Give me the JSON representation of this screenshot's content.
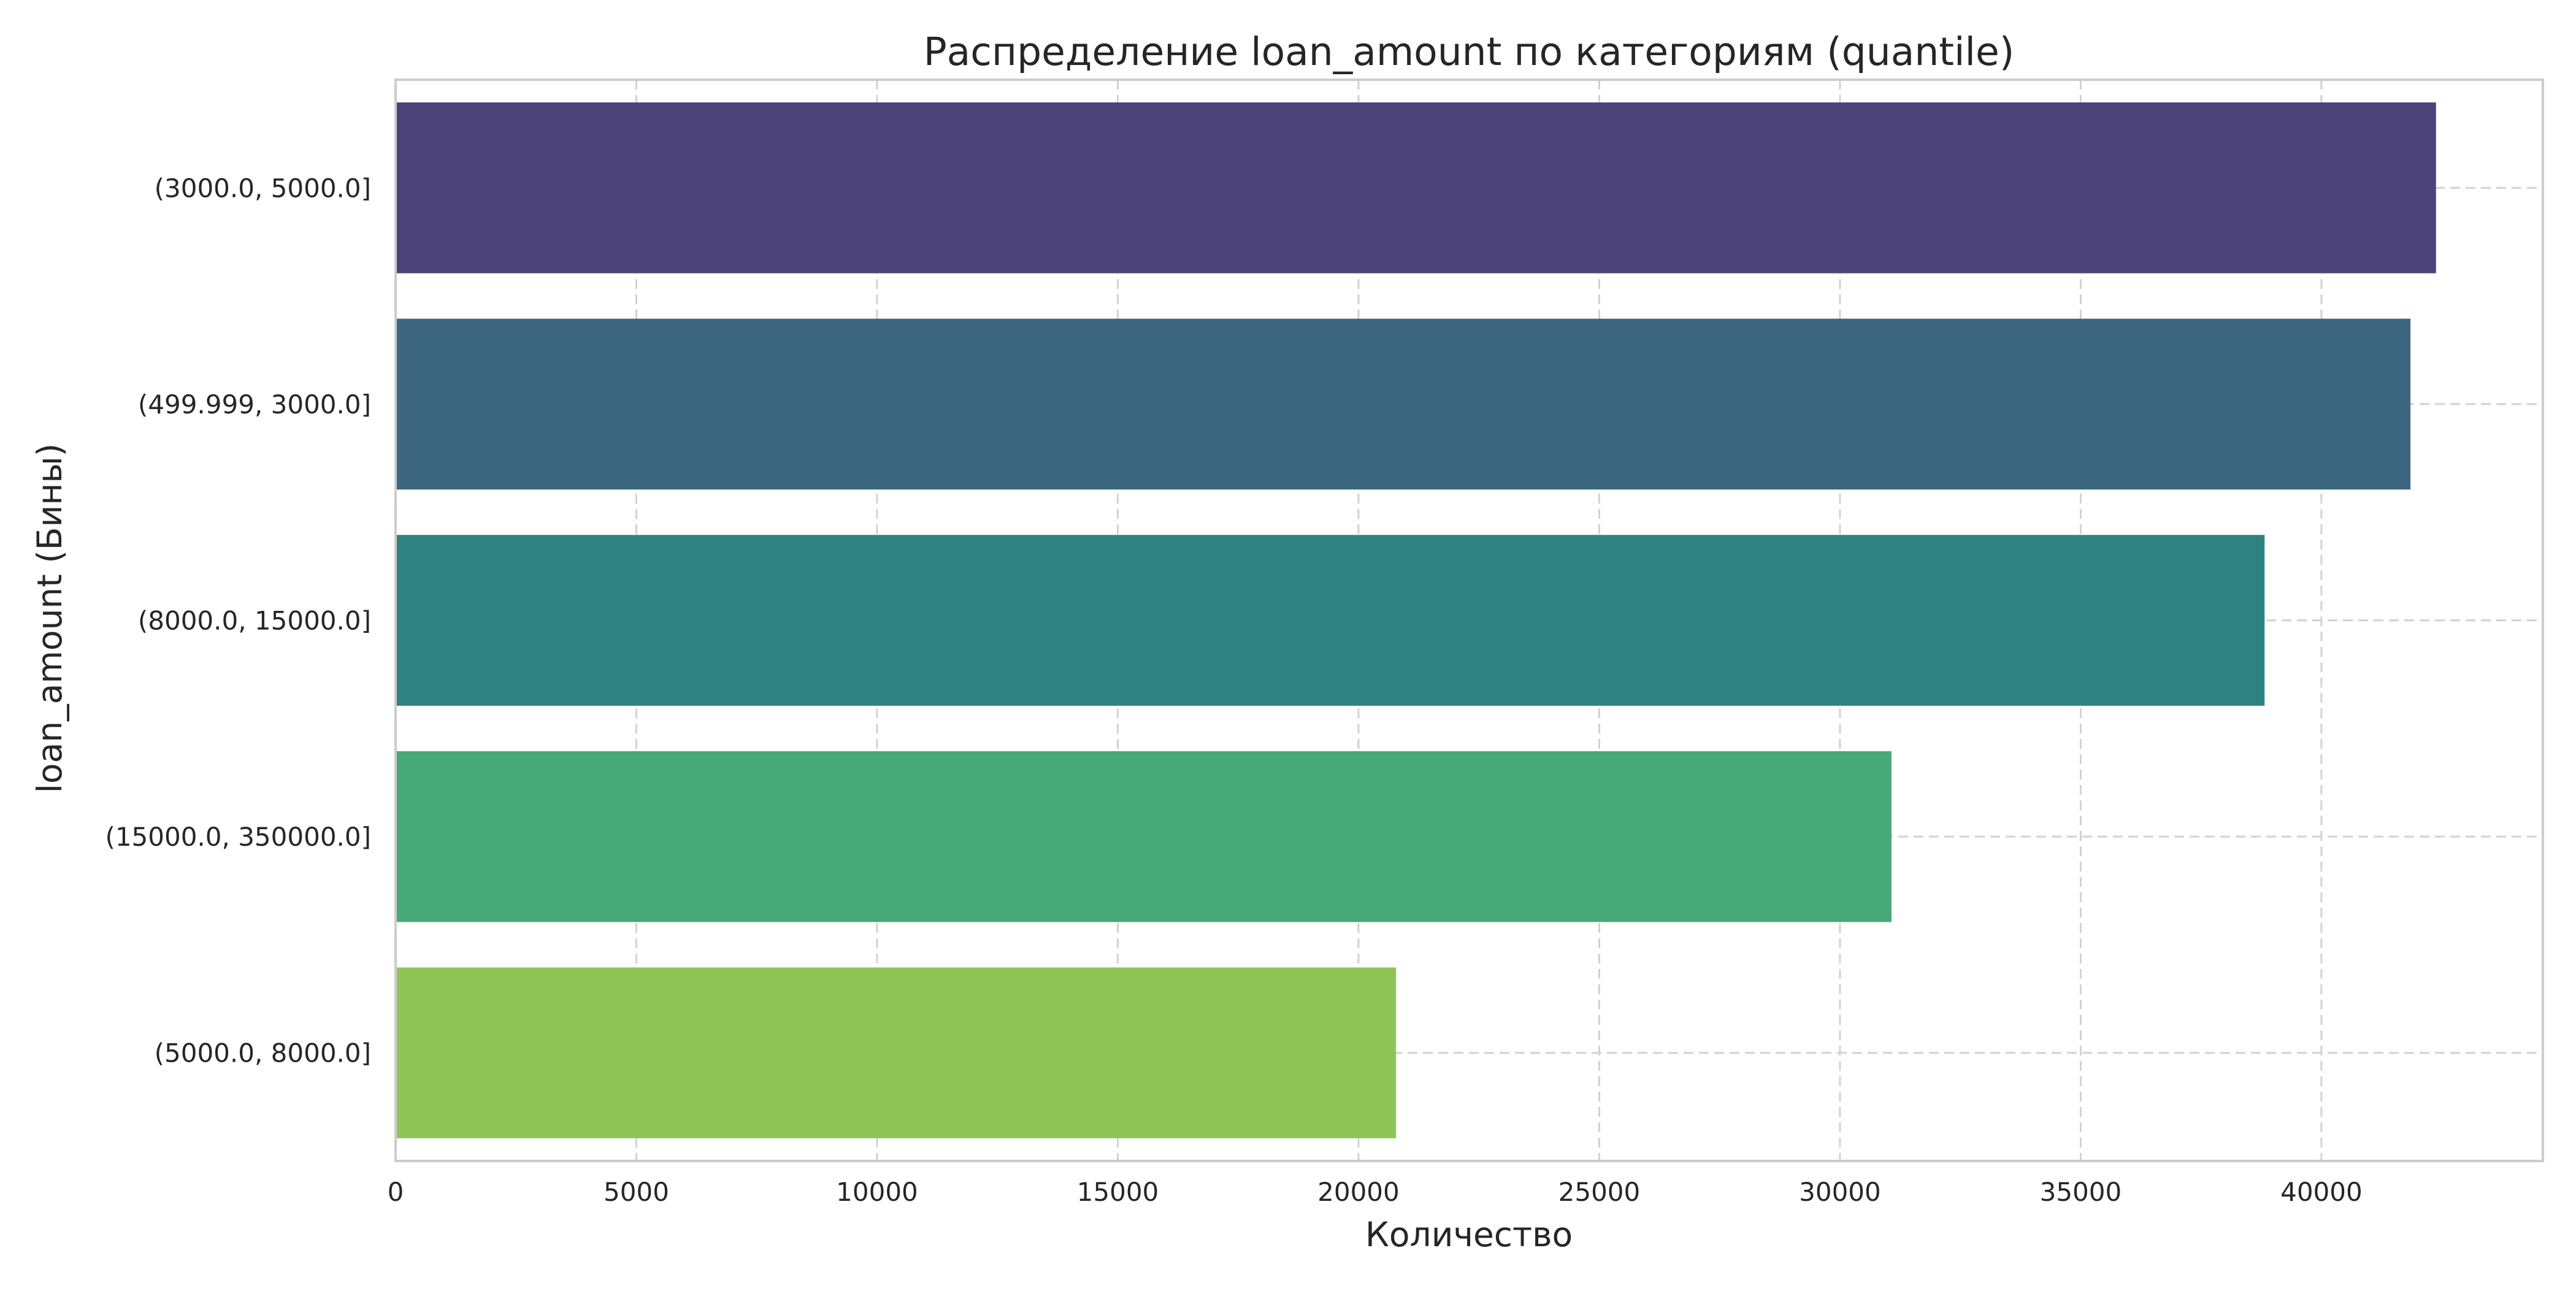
{
  "chart_data": {
    "type": "bar",
    "orientation": "horizontal",
    "title": "Распределение loan_amount по категориям (quantile)",
    "xlabel": "Количество",
    "ylabel": "loan_amount (Бины)",
    "categories": [
      "(3000.0, 5000.0]",
      "(499.999, 3000.0]",
      "(8000.0, 15000.0]",
      "(15000.0, 350000.0]",
      "(5000.0, 8000.0]"
    ],
    "values": [
      42380,
      41850,
      38820,
      31070,
      20780
    ],
    "colors": [
      "#4b4279",
      "#3d6681",
      "#2e8380",
      "#47a878",
      "#8fc556"
    ],
    "xlim": [
      0,
      44600
    ],
    "xticks": [
      0,
      5000,
      10000,
      15000,
      20000,
      25000,
      30000,
      35000,
      40000
    ],
    "xtick_labels": [
      "0",
      "5000",
      "10000",
      "15000",
      "20000",
      "25000",
      "30000",
      "35000",
      "40000"
    ],
    "grid": true,
    "grid_style": "dashed",
    "legend": "none"
  }
}
